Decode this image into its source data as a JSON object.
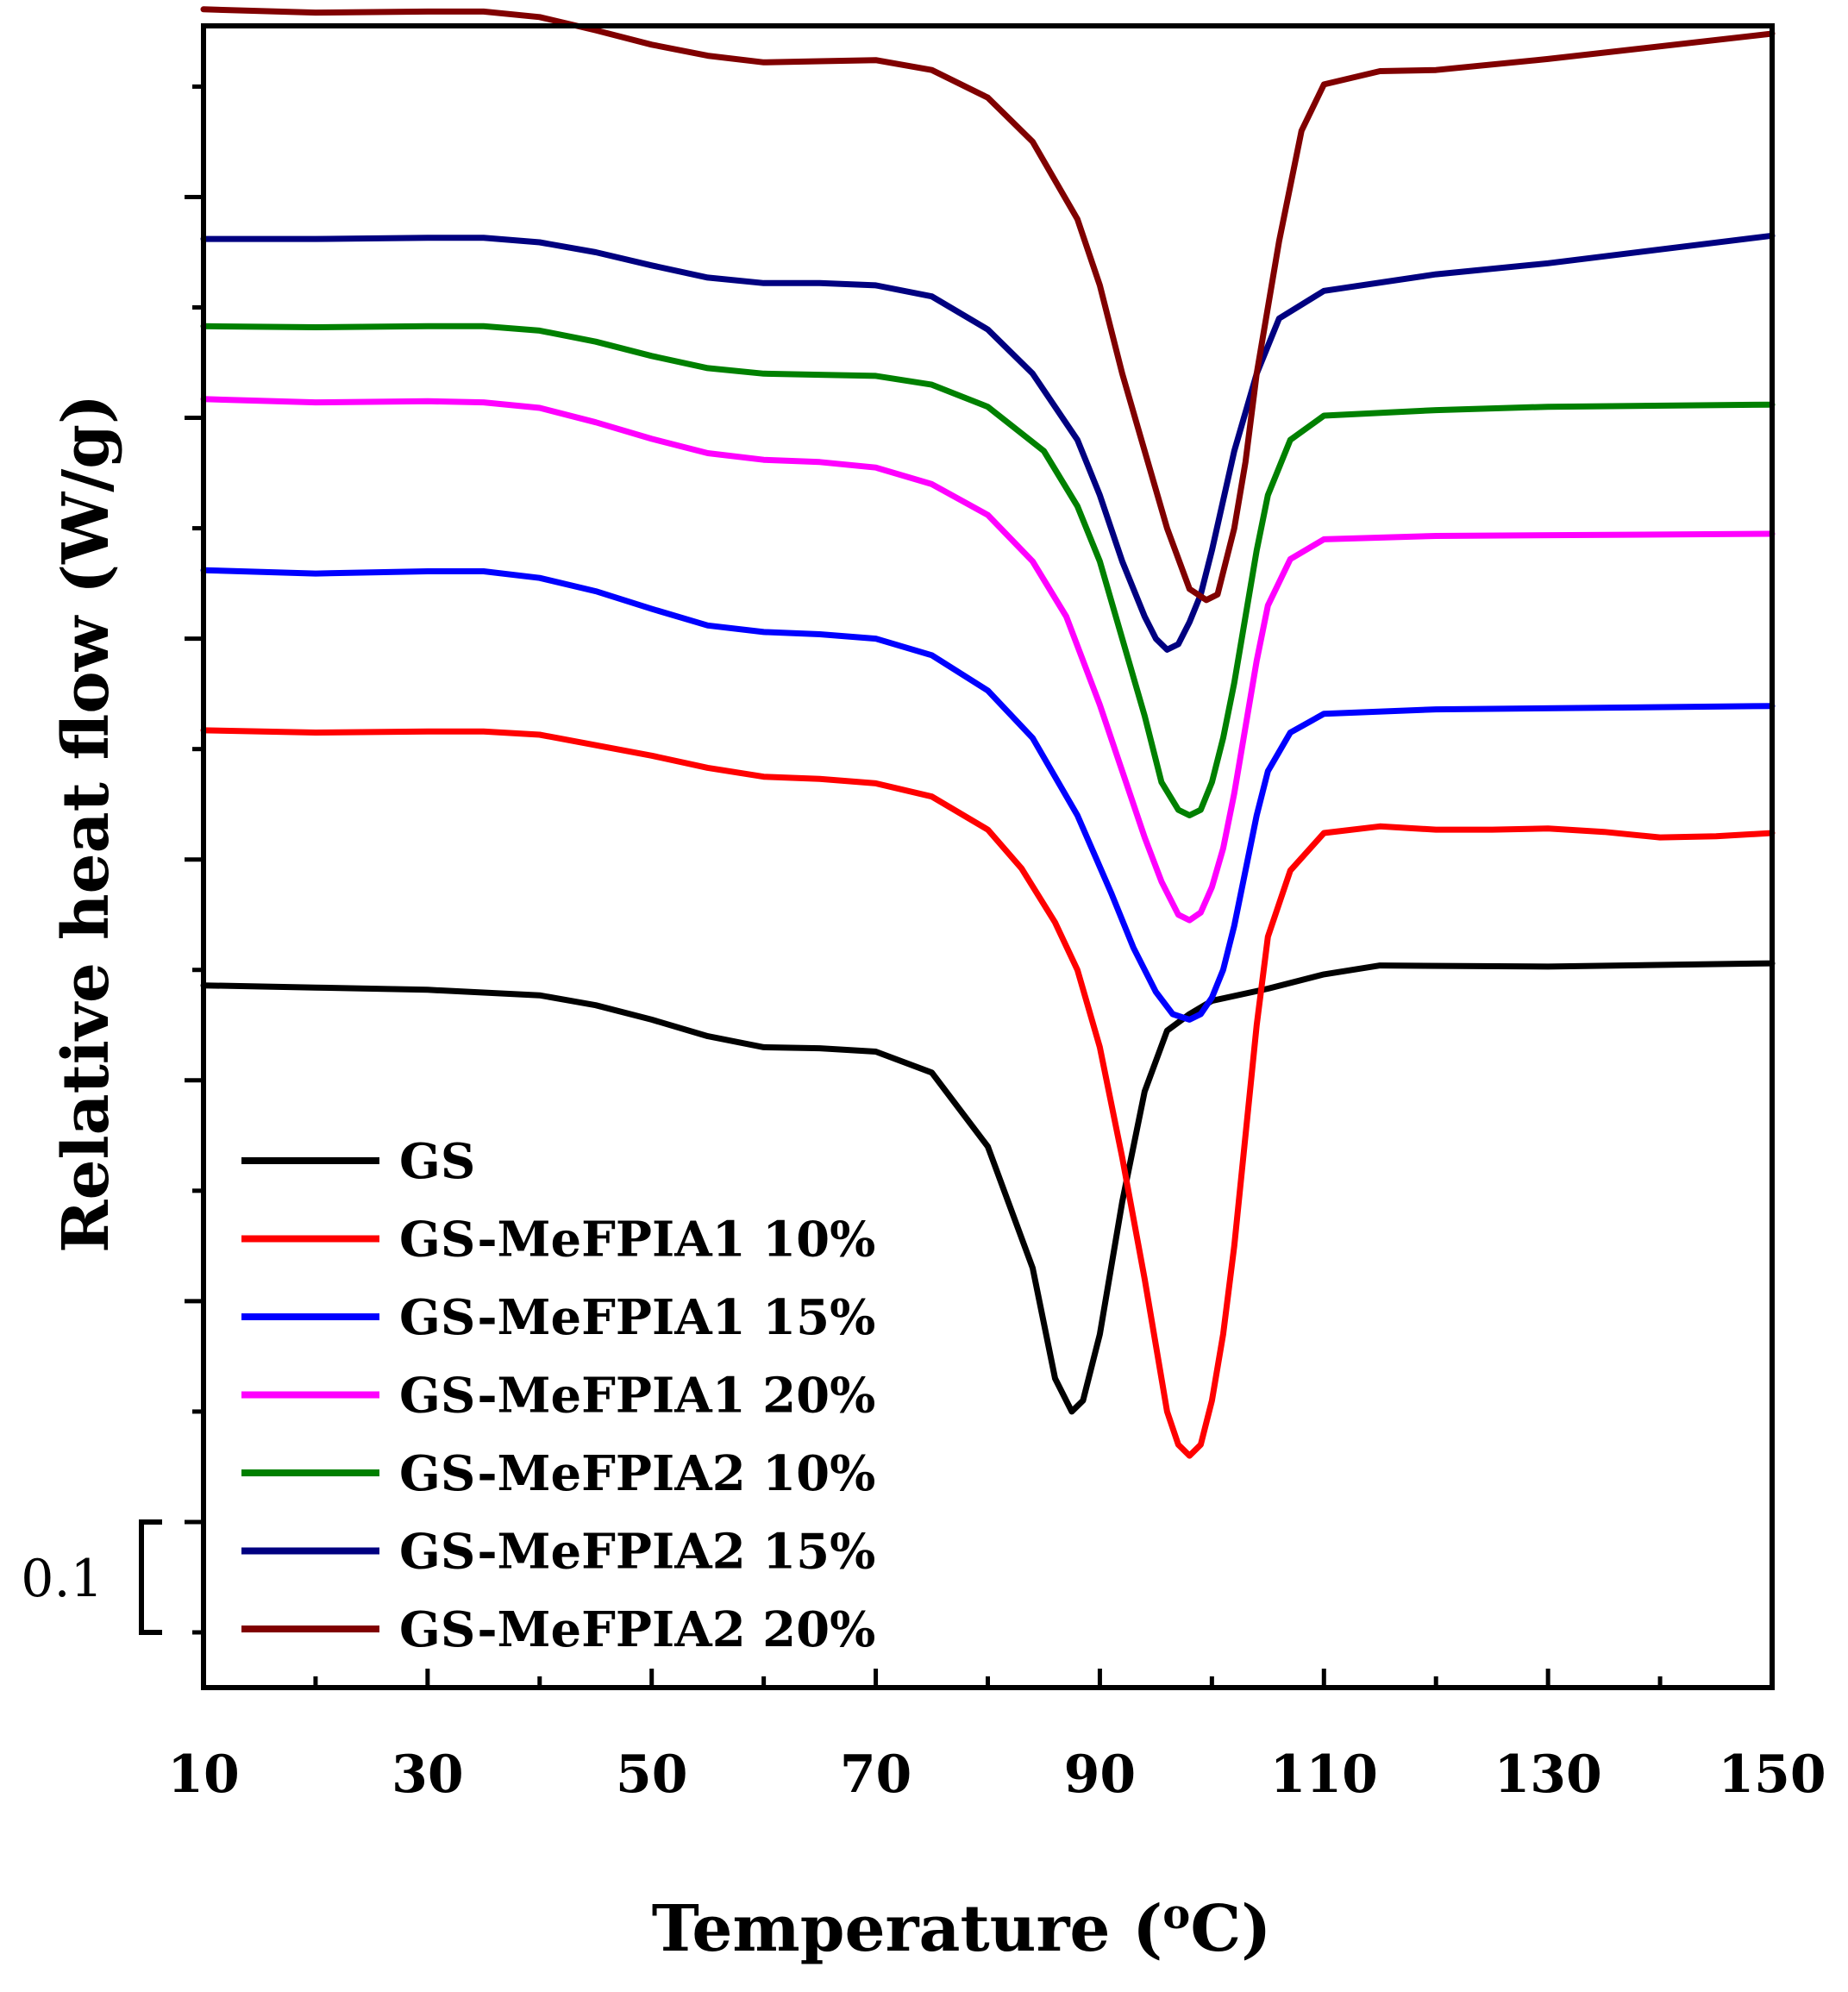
{
  "chart_data": {
    "type": "line",
    "title": "",
    "xlabel": "Temperature (",
    "xlabel_sup": "o",
    "xlabel_unit": "C)",
    "ylabel": "Relative heat flow (W/g)",
    "xlim": [
      10,
      150
    ],
    "ylim": [
      -0.35,
      1.155
    ],
    "x_ticks": [
      10,
      30,
      50,
      70,
      90,
      110,
      130,
      150
    ],
    "x_tick_labels": [
      "10",
      "30",
      "50",
      "70",
      "90",
      "110",
      "130",
      "150"
    ],
    "y_major_ticks": [
      -0.2,
      0.0,
      0.2,
      0.4,
      0.6,
      0.8,
      1.0,
      1.2
    ],
    "y_minor_ticks": [
      -0.3,
      -0.1,
      0.1,
      0.3,
      0.5,
      0.7,
      0.9,
      1.1
    ],
    "scale_bar": {
      "label": "0.1",
      "from": -0.3,
      "to": -0.2
    },
    "legend_position": "bottom-left",
    "series": [
      {
        "name": "GS",
        "color": "#000000",
        "points": [
          [
            10,
            0.286
          ],
          [
            20,
            0.284
          ],
          [
            30,
            0.282
          ],
          [
            40,
            0.277
          ],
          [
            45,
            0.268
          ],
          [
            50,
            0.255
          ],
          [
            55,
            0.24
          ],
          [
            60,
            0.23
          ],
          [
            65,
            0.229
          ],
          [
            70,
            0.226
          ],
          [
            75,
            0.207
          ],
          [
            80,
            0.14
          ],
          [
            84,
            0.03
          ],
          [
            86,
            -0.07
          ],
          [
            87.5,
            -0.1
          ],
          [
            88.5,
            -0.09
          ],
          [
            90,
            -0.03
          ],
          [
            92,
            0.09
          ],
          [
            94,
            0.19
          ],
          [
            96,
            0.245
          ],
          [
            98,
            0.26
          ],
          [
            100,
            0.272
          ],
          [
            105,
            0.283
          ],
          [
            110,
            0.296
          ],
          [
            115,
            0.304
          ],
          [
            130,
            0.303
          ],
          [
            150,
            0.306
          ]
        ]
      },
      {
        "name": "GS-MeFPIA1 10%",
        "color": "#ff0000",
        "points": [
          [
            10,
            0.517
          ],
          [
            20,
            0.515
          ],
          [
            30,
            0.516
          ],
          [
            35,
            0.516
          ],
          [
            40,
            0.513
          ],
          [
            50,
            0.494
          ],
          [
            55,
            0.483
          ],
          [
            60,
            0.475
          ],
          [
            65,
            0.473
          ],
          [
            70,
            0.469
          ],
          [
            75,
            0.457
          ],
          [
            80,
            0.427
          ],
          [
            83,
            0.392
          ],
          [
            86,
            0.343
          ],
          [
            88,
            0.3
          ],
          [
            90,
            0.23
          ],
          [
            92,
            0.13
          ],
          [
            94,
            0.02
          ],
          [
            95,
            -0.04
          ],
          [
            96,
            -0.1
          ],
          [
            97,
            -0.13
          ],
          [
            98,
            -0.14
          ],
          [
            99,
            -0.13
          ],
          [
            100,
            -0.09
          ],
          [
            101,
            -0.03
          ],
          [
            102,
            0.05
          ],
          [
            103,
            0.15
          ],
          [
            104,
            0.25
          ],
          [
            105,
            0.33
          ],
          [
            107,
            0.39
          ],
          [
            110,
            0.424
          ],
          [
            115,
            0.43
          ],
          [
            120,
            0.427
          ],
          [
            125,
            0.427
          ],
          [
            130,
            0.428
          ],
          [
            135,
            0.425
          ],
          [
            140,
            0.42
          ],
          [
            145,
            0.421
          ],
          [
            150,
            0.424
          ]
        ]
      },
      {
        "name": "GS-MeFPIA1 15%",
        "color": "#0000ff",
        "points": [
          [
            10,
            0.662
          ],
          [
            20,
            0.659
          ],
          [
            30,
            0.661
          ],
          [
            35,
            0.661
          ],
          [
            40,
            0.655
          ],
          [
            45,
            0.643
          ],
          [
            50,
            0.627
          ],
          [
            55,
            0.612
          ],
          [
            60,
            0.606
          ],
          [
            65,
            0.604
          ],
          [
            70,
            0.6
          ],
          [
            75,
            0.585
          ],
          [
            80,
            0.553
          ],
          [
            84,
            0.51
          ],
          [
            88,
            0.44
          ],
          [
            91,
            0.37
          ],
          [
            93,
            0.32
          ],
          [
            95,
            0.28
          ],
          [
            96.5,
            0.26
          ],
          [
            98,
            0.255
          ],
          [
            99,
            0.26
          ],
          [
            100,
            0.275
          ],
          [
            101,
            0.3
          ],
          [
            102,
            0.34
          ],
          [
            103,
            0.39
          ],
          [
            104,
            0.44
          ],
          [
            105,
            0.48
          ],
          [
            107,
            0.515
          ],
          [
            110,
            0.532
          ],
          [
            120,
            0.536
          ],
          [
            150,
            0.539
          ]
        ]
      },
      {
        "name": "GS-MeFPIA1 20%",
        "color": "#ff00ff",
        "points": [
          [
            10,
            0.817
          ],
          [
            20,
            0.814
          ],
          [
            30,
            0.815
          ],
          [
            35,
            0.814
          ],
          [
            40,
            0.809
          ],
          [
            45,
            0.796
          ],
          [
            50,
            0.781
          ],
          [
            55,
            0.768
          ],
          [
            60,
            0.762
          ],
          [
            65,
            0.76
          ],
          [
            70,
            0.755
          ],
          [
            75,
            0.74
          ],
          [
            80,
            0.712
          ],
          [
            84,
            0.67
          ],
          [
            87,
            0.62
          ],
          [
            90,
            0.54
          ],
          [
            92,
            0.48
          ],
          [
            94,
            0.42
          ],
          [
            95.5,
            0.38
          ],
          [
            97,
            0.35
          ],
          [
            98,
            0.345
          ],
          [
            99,
            0.352
          ],
          [
            100,
            0.375
          ],
          [
            101,
            0.41
          ],
          [
            102,
            0.46
          ],
          [
            103,
            0.52
          ],
          [
            104,
            0.58
          ],
          [
            105,
            0.63
          ],
          [
            107,
            0.672
          ],
          [
            110,
            0.69
          ],
          [
            120,
            0.693
          ],
          [
            150,
            0.695
          ]
        ]
      },
      {
        "name": "GS-MeFPIA2 10%",
        "color": "#008000",
        "points": [
          [
            10,
            0.883
          ],
          [
            20,
            0.882
          ],
          [
            30,
            0.883
          ],
          [
            35,
            0.883
          ],
          [
            40,
            0.879
          ],
          [
            45,
            0.869
          ],
          [
            50,
            0.856
          ],
          [
            55,
            0.845
          ],
          [
            60,
            0.84
          ],
          [
            65,
            0.839
          ],
          [
            70,
            0.838
          ],
          [
            75,
            0.83
          ],
          [
            80,
            0.81
          ],
          [
            85,
            0.77
          ],
          [
            88,
            0.72
          ],
          [
            90,
            0.67
          ],
          [
            92,
            0.6
          ],
          [
            94,
            0.53
          ],
          [
            95.5,
            0.47
          ],
          [
            97,
            0.445
          ],
          [
            98,
            0.44
          ],
          [
            99,
            0.445
          ],
          [
            100,
            0.47
          ],
          [
            101,
            0.51
          ],
          [
            102,
            0.56
          ],
          [
            103,
            0.62
          ],
          [
            104,
            0.68
          ],
          [
            105,
            0.73
          ],
          [
            107,
            0.78
          ],
          [
            110,
            0.802
          ],
          [
            120,
            0.807
          ],
          [
            130,
            0.81
          ],
          [
            150,
            0.812
          ]
        ]
      },
      {
        "name": "GS-MeFPIA2 15%",
        "color": "#000080",
        "points": [
          [
            10,
            0.962
          ],
          [
            20,
            0.962
          ],
          [
            30,
            0.963
          ],
          [
            35,
            0.963
          ],
          [
            40,
            0.959
          ],
          [
            45,
            0.95
          ],
          [
            50,
            0.938
          ],
          [
            55,
            0.927
          ],
          [
            60,
            0.922
          ],
          [
            65,
            0.922
          ],
          [
            70,
            0.92
          ],
          [
            75,
            0.91
          ],
          [
            80,
            0.88
          ],
          [
            84,
            0.84
          ],
          [
            88,
            0.78
          ],
          [
            90,
            0.73
          ],
          [
            92,
            0.67
          ],
          [
            94,
            0.62
          ],
          [
            95,
            0.6
          ],
          [
            96,
            0.59
          ],
          [
            97,
            0.595
          ],
          [
            98,
            0.615
          ],
          [
            99,
            0.64
          ],
          [
            100,
            0.68
          ],
          [
            102,
            0.77
          ],
          [
            104,
            0.84
          ],
          [
            106,
            0.89
          ],
          [
            110,
            0.915
          ],
          [
            120,
            0.93
          ],
          [
            130,
            0.94
          ],
          [
            150,
            0.965
          ]
        ]
      },
      {
        "name": "GS-MeFPIA2 20%",
        "color": "#800000",
        "points": [
          [
            10,
            1.17
          ],
          [
            20,
            1.167
          ],
          [
            30,
            1.168
          ],
          [
            35,
            1.168
          ],
          [
            40,
            1.163
          ],
          [
            45,
            1.151
          ],
          [
            50,
            1.138
          ],
          [
            55,
            1.128
          ],
          [
            60,
            1.122
          ],
          [
            65,
            1.123
          ],
          [
            70,
            1.124
          ],
          [
            75,
            1.115
          ],
          [
            80,
            1.09
          ],
          [
            84,
            1.05
          ],
          [
            88,
            0.98
          ],
          [
            90,
            0.92
          ],
          [
            92,
            0.84
          ],
          [
            94,
            0.77
          ],
          [
            96,
            0.7
          ],
          [
            98,
            0.645
          ],
          [
            99.5,
            0.635
          ],
          [
            100.5,
            0.64
          ],
          [
            102,
            0.7
          ],
          [
            103,
            0.76
          ],
          [
            104,
            0.84
          ],
          [
            106,
            0.96
          ],
          [
            108,
            1.06
          ],
          [
            110,
            1.102
          ],
          [
            115,
            1.114
          ],
          [
            120,
            1.115
          ],
          [
            130,
            1.125
          ],
          [
            150,
            1.148
          ]
        ]
      }
    ]
  }
}
